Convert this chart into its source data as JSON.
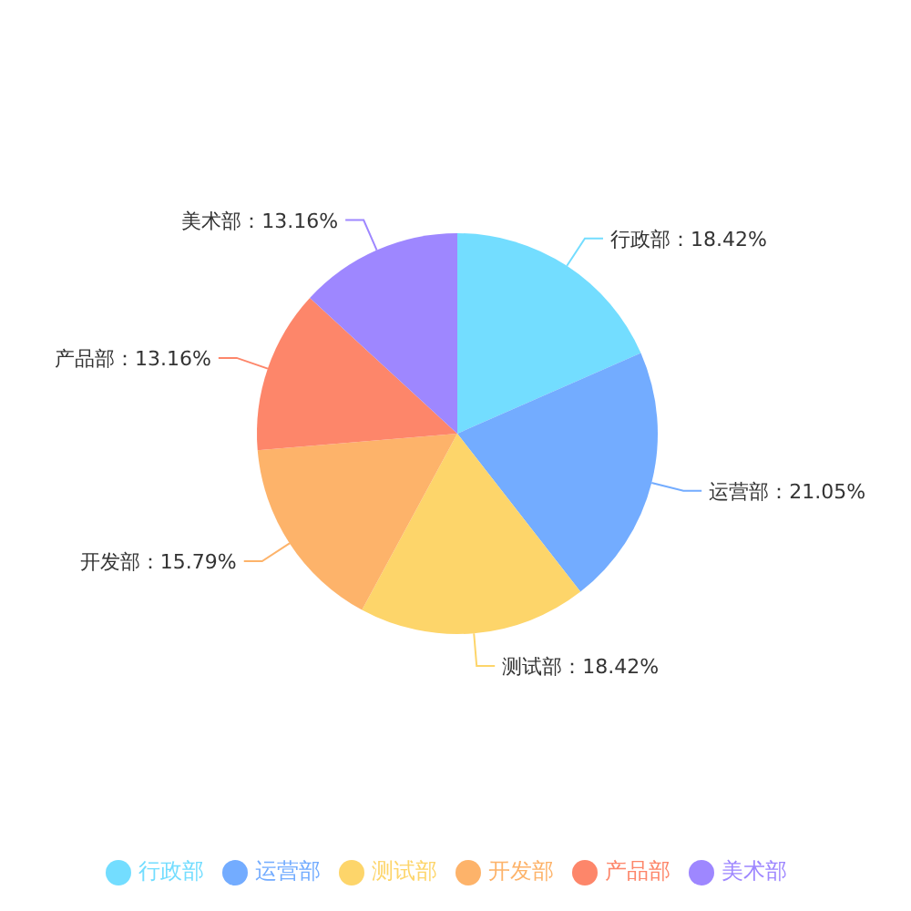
{
  "chart_data": {
    "type": "pie",
    "categories": [
      "行政部",
      "运营部",
      "测试部",
      "开发部",
      "产品部",
      "美术部"
    ],
    "values": [
      18.42,
      21.05,
      18.42,
      15.79,
      13.16,
      13.16
    ],
    "colors": [
      "#73ddff",
      "#73acff",
      "#fdd56a",
      "#fdb36a",
      "#fd866a",
      "#9e87ff"
    ],
    "value_labels": [
      "行政部：18.42%",
      "运营部：21.05%",
      "测试部：18.42%",
      "开发部：15.79%",
      "产品部：13.16%",
      "美术部：13.16%"
    ],
    "legend": "bottom"
  }
}
